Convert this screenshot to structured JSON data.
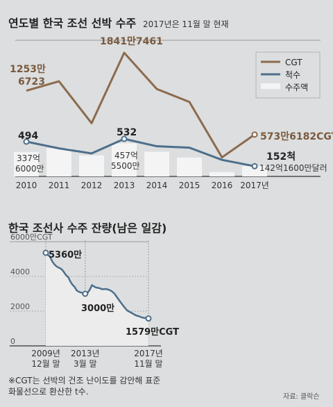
{
  "title_top": "연도별 한국 조선 선박 수주",
  "subtitle_top": "2017년은 11월 말 현재",
  "legend": [
    {
      "label": "CGT",
      "color": "#8c6a4d"
    },
    {
      "label": "척수",
      "color": "#4d6e8a"
    },
    {
      "label": "수주액",
      "color": "#f4f4f4"
    }
  ],
  "annotations_top": {
    "cgt_2010": [
      "1253만",
      "6723"
    ],
    "cgt_2013": "1841만7461",
    "cgt_2017": "573만6182CGT",
    "ships_2010": "494",
    "ships_2013": "532",
    "ships_2017": "152척",
    "amount_2010": [
      "337억",
      "6000만"
    ],
    "amount_2013": [
      "457억",
      "5500만"
    ],
    "amount_2017": "142억1600만달러"
  },
  "title_bottom": "한국 조선사 수주 잔량(남은 일감)",
  "annotations_bottom": {
    "start": "5360만",
    "mid": "3000만",
    "end": "1579만CGT",
    "y_unit": "6000만CGT"
  },
  "footnote": [
    "※CGT는 선박의 건조 난이도를 감안해 표준",
    "화물선으로 환산한 t수."
  ],
  "source": "자료: 클락슨",
  "chart_data": [
    {
      "type": "line",
      "title": "연도별 한국 조선 선박 수주",
      "subtitle": "2017년은 11월 말 현재",
      "categories": [
        "2010",
        "2011",
        "2012",
        "2013",
        "2014",
        "2015",
        "2016",
        "2017년"
      ],
      "series": [
        {
          "name": "CGT",
          "kind": "line",
          "unit": "CGT",
          "values": [
            12536723,
            14000000,
            7500000,
            18417461,
            12800000,
            10800000,
            2200000,
            5736182
          ]
        },
        {
          "name": "척수",
          "kind": "line",
          "unit": "척",
          "values": [
            494,
            400,
            330,
            532,
            430,
            410,
            240,
            152
          ]
        },
        {
          "name": "수주액",
          "kind": "bar",
          "unit": "달러",
          "values": [
            33760000000,
            39000000000,
            29000000000,
            45755000000,
            34000000000,
            26000000000,
            6000000000,
            14216000000
          ]
        }
      ],
      "legend_position": "top-right",
      "grid": false
    },
    {
      "type": "area",
      "title": "한국 조선사 수주 잔량(남은 일감)",
      "ylabel": "6000만CGT",
      "yticks": [
        "6000만CGT",
        "4000",
        "2000",
        "0"
      ],
      "ylim": [
        0,
        6000
      ],
      "xticks": [
        {
          "label": [
            "2009년",
            "12월 말"
          ],
          "t": 0
        },
        {
          "label": [
            "2013년",
            "3월 말"
          ],
          "t": 0.3838
        },
        {
          "label": [
            "2017년",
            "11월 말"
          ],
          "t": 1
        }
      ],
      "unit": "만CGT",
      "points": [
        [
          0,
          5360
        ],
        [
          0.02,
          5230
        ],
        [
          0.04,
          5150
        ],
        [
          0.06,
          4900
        ],
        [
          0.08,
          4720
        ],
        [
          0.1,
          4600
        ],
        [
          0.12,
          4520
        ],
        [
          0.14,
          4470
        ],
        [
          0.16,
          4380
        ],
        [
          0.18,
          4220
        ],
        [
          0.2,
          4050
        ],
        [
          0.22,
          3950
        ],
        [
          0.24,
          3700
        ],
        [
          0.26,
          3520
        ],
        [
          0.28,
          3400
        ],
        [
          0.3,
          3200
        ],
        [
          0.32,
          3120
        ],
        [
          0.35,
          3060
        ],
        [
          0.3838,
          3000
        ],
        [
          0.41,
          3080
        ],
        [
          0.43,
          3250
        ],
        [
          0.45,
          3500
        ],
        [
          0.47,
          3420
        ],
        [
          0.49,
          3360
        ],
        [
          0.52,
          3330
        ],
        [
          0.55,
          3260
        ],
        [
          0.58,
          3280
        ],
        [
          0.61,
          3240
        ],
        [
          0.64,
          3160
        ],
        [
          0.67,
          3000
        ],
        [
          0.7,
          2750
        ],
        [
          0.73,
          2500
        ],
        [
          0.76,
          2270
        ],
        [
          0.79,
          2050
        ],
        [
          0.82,
          1950
        ],
        [
          0.85,
          1850
        ],
        [
          0.88,
          1750
        ],
        [
          0.91,
          1700
        ],
        [
          0.94,
          1630
        ],
        [
          0.97,
          1600
        ],
        [
          1,
          1579
        ]
      ],
      "grid": true
    }
  ]
}
